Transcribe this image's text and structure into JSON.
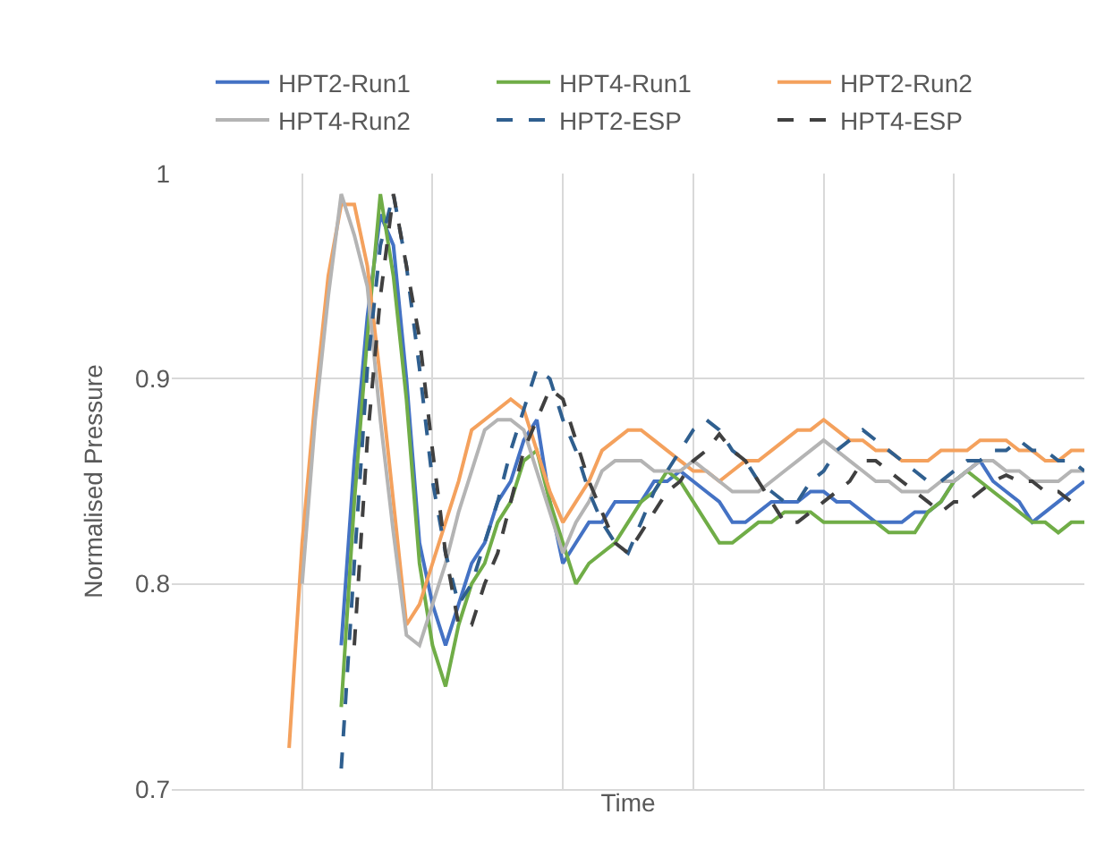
{
  "chart_data": {
    "type": "line",
    "xlabel": "Time",
    "ylabel": "Normalised Pressure",
    "categories": [
      null,
      null,
      null,
      null,
      null,
      null,
      null,
      null,
      null,
      null,
      null,
      null,
      null,
      null,
      null,
      null,
      null,
      null,
      null,
      null,
      null,
      null,
      null,
      null,
      null,
      null,
      null,
      null,
      null,
      null,
      null,
      null,
      null,
      null,
      null,
      null,
      null,
      null,
      null,
      null,
      null,
      null,
      null,
      null,
      null,
      null,
      null,
      null,
      null,
      null,
      null,
      null,
      null,
      null,
      null,
      null,
      null,
      null,
      null,
      null,
      null,
      null,
      null,
      null,
      null,
      null,
      null,
      null,
      null,
      null,
      null
    ],
    "ylim": [
      0.7,
      1
    ],
    "yticks": [
      0.7,
      0.8,
      0.9,
      1
    ],
    "grid": true,
    "legend": "top",
    "tick_labels": "y",
    "marker": "none",
    "series": [
      {
        "name": "HPT2-Run1",
        "color": "#4472c4",
        "line_style": "solid",
        "values": [
          null,
          null,
          null,
          null,
          null,
          null,
          null,
          null,
          null,
          null,
          null,
          null,
          null,
          0.77,
          0.86,
          0.93,
          0.98,
          0.965,
          0.9,
          0.82,
          0.79,
          0.77,
          0.79,
          0.81,
          0.82,
          0.84,
          0.85,
          0.87,
          0.88,
          0.84,
          0.81,
          0.82,
          0.83,
          0.83,
          0.84,
          0.84,
          0.84,
          0.85,
          0.85,
          0.855,
          0.85,
          0.845,
          0.84,
          0.83,
          0.83,
          0.835,
          0.84,
          0.84,
          0.84,
          0.845,
          0.845,
          0.84,
          0.84,
          0.835,
          0.83,
          0.83,
          0.83,
          0.835,
          0.835,
          0.84,
          0.85,
          0.855,
          0.86,
          0.85,
          0.845,
          0.84,
          0.83,
          0.835,
          0.84,
          0.845,
          0.85
        ]
      },
      {
        "name": "HPT4-Run1",
        "color": "#70ad47",
        "line_style": "solid",
        "values": [
          null,
          null,
          null,
          null,
          null,
          null,
          null,
          null,
          null,
          null,
          null,
          null,
          null,
          0.74,
          0.84,
          0.92,
          0.99,
          0.95,
          0.89,
          0.81,
          0.77,
          0.75,
          0.78,
          0.8,
          0.81,
          0.83,
          0.84,
          0.86,
          0.865,
          0.84,
          0.82,
          0.8,
          0.81,
          0.815,
          0.82,
          0.83,
          0.84,
          0.845,
          0.855,
          0.85,
          0.84,
          0.83,
          0.82,
          0.82,
          0.825,
          0.83,
          0.83,
          0.835,
          0.835,
          0.835,
          0.83,
          0.83,
          0.83,
          0.83,
          0.83,
          0.825,
          0.825,
          0.825,
          0.835,
          0.84,
          0.85,
          0.855,
          0.85,
          0.845,
          0.84,
          0.835,
          0.83,
          0.83,
          0.825,
          0.83,
          0.83
        ]
      },
      {
        "name": "HPT2-Run2",
        "color": "#f4a15d",
        "line_style": "solid",
        "values": [
          null,
          null,
          null,
          null,
          null,
          null,
          null,
          null,
          null,
          0.72,
          0.82,
          0.89,
          0.95,
          0.985,
          0.985,
          0.955,
          0.9,
          0.84,
          0.78,
          0.79,
          0.81,
          0.83,
          0.85,
          0.875,
          0.88,
          0.885,
          0.89,
          0.885,
          0.865,
          0.845,
          0.83,
          0.84,
          0.85,
          0.865,
          0.87,
          0.875,
          0.875,
          0.87,
          0.865,
          0.86,
          0.855,
          0.855,
          0.85,
          0.855,
          0.86,
          0.86,
          0.865,
          0.87,
          0.875,
          0.875,
          0.88,
          0.875,
          0.87,
          0.87,
          0.865,
          0.865,
          0.86,
          0.86,
          0.86,
          0.865,
          0.865,
          0.865,
          0.87,
          0.87,
          0.87,
          0.865,
          0.865,
          0.86,
          0.86,
          0.865,
          0.865
        ]
      },
      {
        "name": "HPT4-Run2",
        "color": "#b4b4b4",
        "line_style": "solid",
        "values": [
          null,
          null,
          null,
          null,
          null,
          null,
          null,
          null,
          null,
          null,
          0.8,
          0.88,
          0.94,
          0.99,
          0.97,
          0.945,
          0.88,
          0.825,
          0.775,
          0.77,
          0.79,
          0.81,
          0.835,
          0.855,
          0.875,
          0.88,
          0.88,
          0.875,
          0.855,
          0.835,
          0.815,
          0.83,
          0.84,
          0.855,
          0.86,
          0.86,
          0.86,
          0.855,
          0.855,
          0.855,
          0.86,
          0.855,
          0.85,
          0.845,
          0.845,
          0.845,
          0.85,
          0.855,
          0.86,
          0.865,
          0.87,
          0.865,
          0.86,
          0.855,
          0.85,
          0.85,
          0.845,
          0.845,
          0.845,
          0.85,
          0.85,
          0.855,
          0.86,
          0.86,
          0.855,
          0.855,
          0.85,
          0.85,
          0.85,
          0.855,
          0.855
        ]
      },
      {
        "name": "HPT2-ESP",
        "color": "#2f5f8f",
        "line_style": "dashed",
        "values": [
          null,
          null,
          null,
          null,
          null,
          null,
          null,
          null,
          null,
          null,
          null,
          null,
          null,
          0.71,
          0.81,
          0.905,
          0.965,
          0.99,
          0.955,
          0.905,
          0.85,
          0.815,
          0.79,
          0.8,
          0.82,
          0.84,
          0.865,
          0.885,
          0.905,
          0.9,
          0.88,
          0.865,
          0.845,
          0.83,
          0.82,
          0.815,
          0.83,
          0.845,
          0.855,
          0.865,
          0.875,
          0.88,
          0.875,
          0.865,
          0.86,
          0.85,
          0.845,
          0.84,
          0.84,
          0.85,
          0.855,
          0.865,
          0.87,
          0.875,
          0.87,
          0.865,
          0.86,
          0.855,
          0.85,
          0.85,
          0.855,
          0.86,
          0.86,
          0.865,
          0.865,
          0.87,
          0.865,
          0.865,
          0.86,
          0.86,
          0.855
        ]
      },
      {
        "name": "HPT4-ESP",
        "color": "#404040",
        "line_style": "dashed",
        "values": [
          null,
          null,
          null,
          null,
          null,
          null,
          null,
          null,
          null,
          null,
          null,
          null,
          null,
          null,
          0.77,
          0.87,
          0.94,
          0.99,
          0.955,
          0.92,
          0.865,
          0.815,
          0.78,
          0.78,
          0.8,
          0.815,
          0.84,
          0.865,
          0.88,
          0.895,
          0.89,
          0.87,
          0.85,
          0.835,
          0.82,
          0.815,
          0.825,
          0.835,
          0.845,
          0.85,
          0.86,
          0.865,
          0.873,
          0.865,
          0.86,
          0.85,
          0.84,
          0.83,
          0.83,
          0.835,
          0.84,
          0.845,
          0.85,
          0.86,
          0.86,
          0.855,
          0.85,
          0.845,
          0.84,
          0.835,
          0.84,
          0.84,
          0.845,
          0.85,
          0.853,
          0.85,
          0.85,
          0.845,
          0.845,
          0.84,
          0.84
        ]
      }
    ]
  }
}
